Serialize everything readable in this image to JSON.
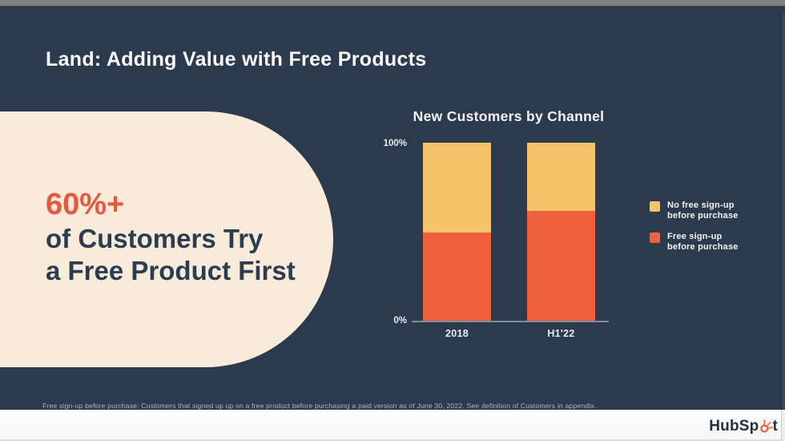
{
  "slide": {
    "title": "Land: Adding Value with Free Products",
    "stat_highlight": "60%+",
    "stat_line1": "of Customers Try",
    "stat_line2": "a Free Product First",
    "footnote": "Free sign-up before purchase: Customers that signed up up on a free product before purchasing a paid version as of June 30, 2022. See definition of Customers in appendix."
  },
  "chart_data": {
    "type": "bar",
    "stacked": true,
    "title": "New Customers by Channel",
    "categories": [
      "2018",
      "H1'22"
    ],
    "series": [
      {
        "name": "No free sign-up before purchase",
        "color": "#F5C368",
        "values": [
          50,
          38
        ]
      },
      {
        "name": "Free sign-up before purchase",
        "color": "#EE613C",
        "values": [
          50,
          62
        ]
      }
    ],
    "unit": "%",
    "ylim": [
      0,
      100
    ],
    "yticks": [
      "100%",
      "0%"
    ],
    "grid": false,
    "legend_position": "right",
    "legend": [
      {
        "line1": "No free sign-up",
        "line2": "before purchase",
        "color": "#F5C368"
      },
      {
        "line1": "Free sign-up",
        "line2": "before purchase",
        "color": "#EE613C"
      }
    ]
  },
  "branding": {
    "logo_prefix": "HubSp",
    "logo_suffix": "t",
    "logo_color": "#213343",
    "sprocket_color": "#F0663C"
  },
  "colors": {
    "background": "#2C3A4D",
    "panel_cream": "#F8EBD9",
    "accent_orange": "#E8583E",
    "bar_yellow": "#F5C368",
    "bar_orange": "#EE613C",
    "title_text": "#FFFFFF",
    "dark_text": "#2C3C51",
    "footnote_text": "#A9B7C4",
    "axis_line": "#7D8C9B"
  }
}
